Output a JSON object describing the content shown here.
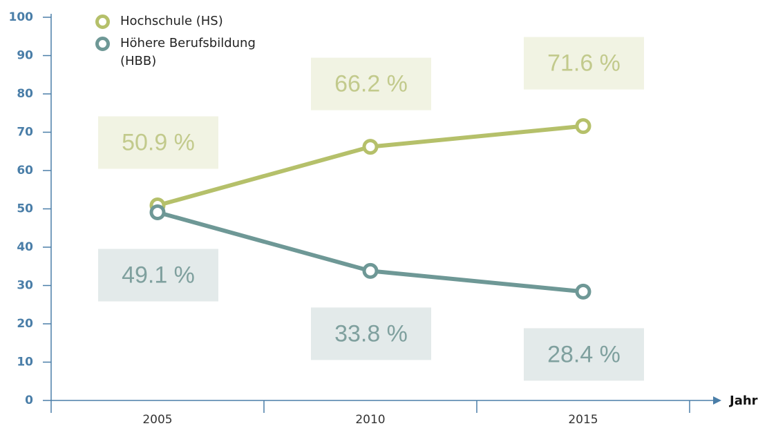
{
  "chart_data": {
    "type": "line",
    "categories": [
      "2005",
      "2010",
      "2015"
    ],
    "series": [
      {
        "name": "Hochschule (HS)",
        "color": "#b5c06a",
        "label_color": "#c2ca8c",
        "box_color": "#f1f3e3",
        "values": [
          50.9,
          66.2,
          71.6
        ],
        "value_labels": [
          "50.9 %",
          "66.2 %",
          "71.6 %"
        ]
      },
      {
        "name": "Höhere Berufsbildung (HBB)",
        "color": "#6e9896",
        "label_color": "#7fa09e",
        "box_color": "#e3eaea",
        "values": [
          49.1,
          33.8,
          28.4
        ],
        "value_labels": [
          "49.1 %",
          "33.8 %",
          "28.4 %"
        ]
      }
    ],
    "x_label": "Jahr",
    "ylim": [
      0,
      100
    ],
    "yticks": [
      0,
      10,
      20,
      30,
      40,
      50,
      60,
      70,
      80,
      90,
      100
    ],
    "axis_color": "#4a7ea8"
  }
}
